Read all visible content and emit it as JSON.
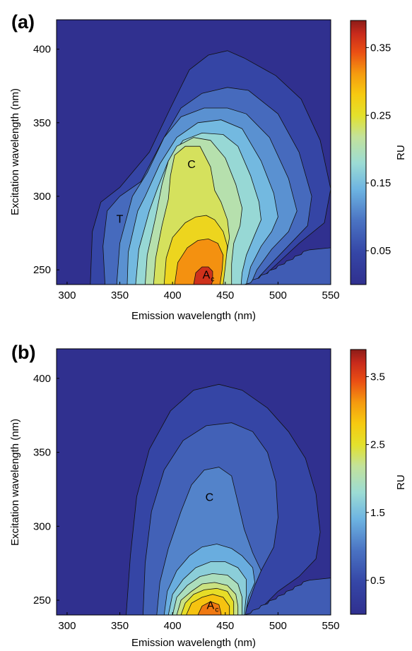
{
  "chart_data": [
    {
      "type": "contour",
      "panel_label": "(a)",
      "xlabel": "Emission wavelength (nm)",
      "ylabel": "Excitation wavelength (nm)",
      "xlim": [
        290,
        550
      ],
      "ylim": [
        240,
        420
      ],
      "xticks": [
        "300",
        "350",
        "400",
        "450",
        "500",
        "550"
      ],
      "yticks": [
        "250",
        "300",
        "350",
        "400"
      ],
      "colorbar": {
        "label": "RU",
        "range": [
          0,
          0.39
        ],
        "ticks": [
          "0.05",
          "0.15",
          "0.25",
          "0.35"
        ]
      },
      "levels": [
        0.03,
        0.07,
        0.1,
        0.13,
        0.16,
        0.19,
        0.22,
        0.25,
        0.3,
        0.35
      ],
      "peaks": [
        {
          "label": "T",
          "sub": "",
          "x": 350,
          "y": 285,
          "value": 0.1
        },
        {
          "label": "C",
          "sub": "",
          "x": 418,
          "y": 322,
          "value": 0.25
        },
        {
          "label": "A",
          "sub": "c",
          "x": 432,
          "y": 247,
          "value": 0.38
        }
      ]
    },
    {
      "type": "contour",
      "panel_label": "(b)",
      "xlabel": "Emission wavelength (nm)",
      "ylabel": "Excitation wavelength (nm)",
      "xlim": [
        290,
        550
      ],
      "ylim": [
        240,
        420
      ],
      "xticks": [
        "300",
        "350",
        "400",
        "450",
        "500",
        "550"
      ],
      "yticks": [
        "250",
        "300",
        "350",
        "400"
      ],
      "colorbar": {
        "label": "RU",
        "range": [
          0,
          3.9
        ],
        "ticks": [
          "0.5",
          "1.5",
          "2.5",
          "3.5"
        ]
      },
      "levels": [
        0.3,
        0.6,
        0.9,
        1.2,
        1.5,
        1.8,
        2.1,
        2.4,
        2.7,
        3.1
      ],
      "peaks": [
        {
          "label": "C",
          "sub": "",
          "x": 435,
          "y": 320,
          "value": 1.0
        },
        {
          "label": "A",
          "sub": "c",
          "x": 436,
          "y": 247,
          "value": 3.9
        }
      ]
    }
  ]
}
